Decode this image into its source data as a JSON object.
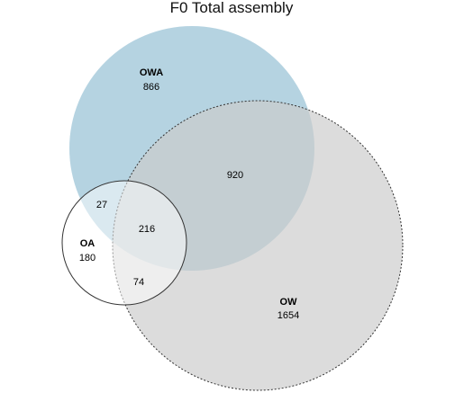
{
  "title": "F0 Total assembly",
  "sets": {
    "owa": {
      "label": "OWA",
      "count": "866",
      "fill": "#b5d3e1",
      "stroke": "none"
    },
    "ow": {
      "label": "OW",
      "count": "1654",
      "fill": "#cccccc",
      "stroke": "#333333"
    },
    "oa": {
      "label": "OA",
      "count": "180",
      "fill": "#ffffff",
      "stroke": "#333333"
    }
  },
  "intersections": {
    "owa_ow": "920",
    "owa_oa": "27",
    "owa_ow_oa": "216",
    "ow_oa": "74"
  }
}
